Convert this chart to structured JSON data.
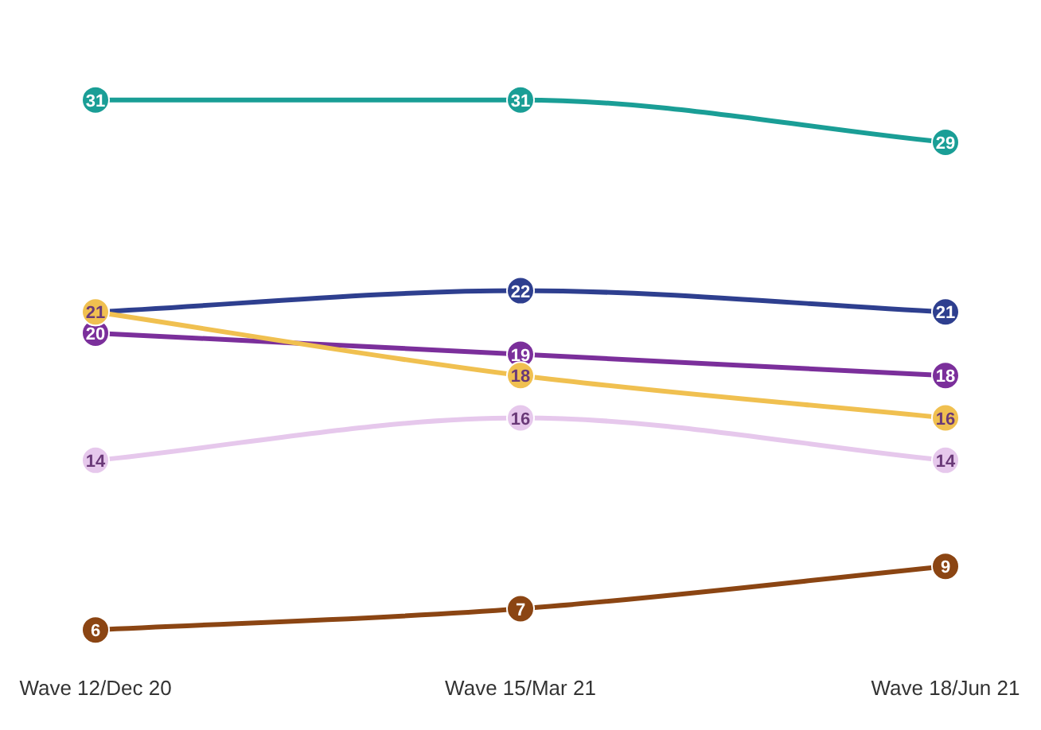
{
  "chart_data": {
    "type": "line",
    "categories": [
      "Wave 12/Dec 20",
      "Wave 15/Mar 21",
      "Wave 18/Jun 21"
    ],
    "grid": false,
    "legend": false,
    "marker": "circle",
    "line_style": "solid",
    "tick_labels": "x",
    "series": [
      {
        "color": "#1a9e96",
        "values": [
          31,
          31,
          29
        ],
        "value_labels": [
          "31",
          "31",
          "29"
        ]
      },
      {
        "color": "#f0c050",
        "values": [
          21,
          18,
          16
        ],
        "value_labels": [
          "21",
          "18",
          "16"
        ]
      },
      {
        "color": "#2e3f8f",
        "values": [
          21,
          22,
          21
        ],
        "value_labels": [
          null,
          "22",
          "21"
        ]
      },
      {
        "color": "#7b2f9b",
        "values": [
          20,
          19,
          18
        ],
        "value_labels": [
          "20",
          "19",
          "18"
        ]
      },
      {
        "color": "#e6c8ec",
        "values": [
          14,
          16,
          14
        ],
        "value_labels": [
          "14",
          "16",
          "14"
        ]
      },
      {
        "color": "#8b4513",
        "values": [
          6,
          7,
          9
        ],
        "value_labels": [
          "6",
          "7",
          "9"
        ]
      }
    ]
  }
}
